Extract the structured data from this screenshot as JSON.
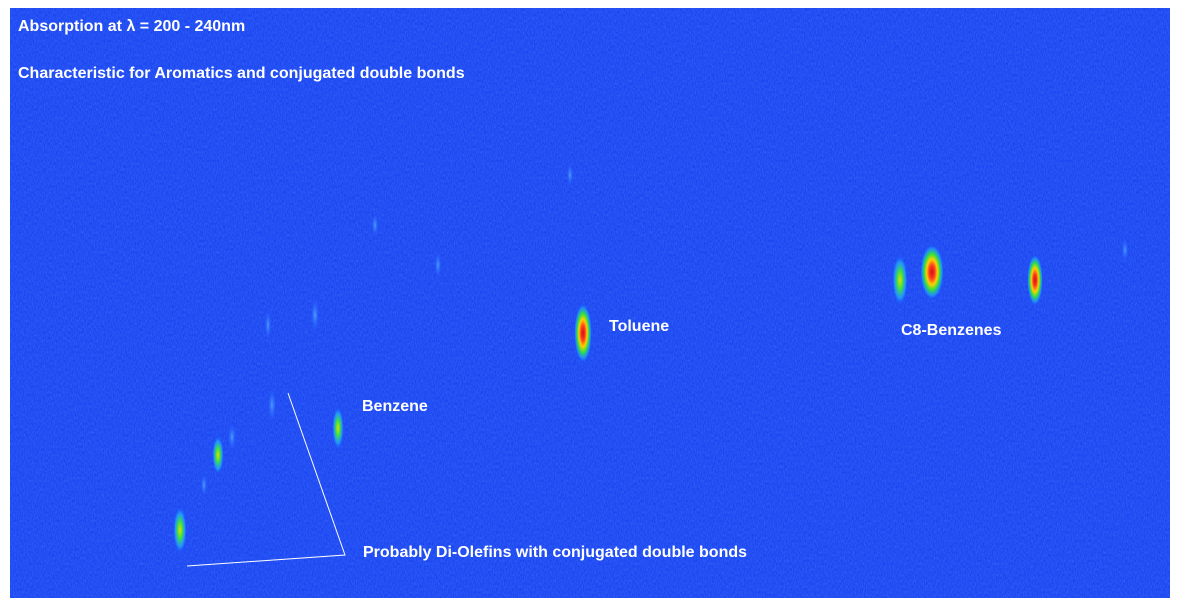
{
  "title": "Absorption at λ = 200 - 240nm",
  "subtitle": "Characteristic for Aromatics and conjugated double bonds",
  "annotations": [
    "Toluene",
    "C8-Benzenes",
    "Benzene",
    "Probably Di-Olefins with conjugated double bonds"
  ]
}
